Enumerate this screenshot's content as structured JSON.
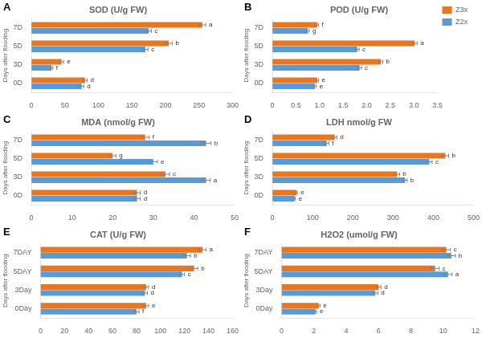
{
  "chart_data": [
    {
      "type": "bar",
      "orientation": "horizontal",
      "panel_label": "A",
      "title": "SOD (U/g FW)",
      "ylabel": "Days after flooding",
      "categories": [
        "0D",
        "3D",
        "5D",
        "7D"
      ],
      "series": [
        {
          "name": "Z3x",
          "color": "#E87722",
          "values": [
            80,
            45,
            205,
            255
          ],
          "errors": [
            3,
            3,
            5,
            5
          ],
          "annotations": [
            "d",
            "e",
            "b",
            "a"
          ]
        },
        {
          "name": "Z2x",
          "color": "#5B9BD5",
          "values": [
            75,
            30,
            170,
            175
          ],
          "errors": [
            3,
            2,
            4,
            4
          ],
          "annotations": [
            "d",
            "f",
            "c",
            "c"
          ]
        }
      ],
      "xlim": [
        0,
        300
      ],
      "xticks": [
        0,
        50,
        100,
        150,
        200,
        250,
        300
      ],
      "grid": false
    },
    {
      "type": "bar",
      "orientation": "horizontal",
      "panel_label": "B",
      "title": "POD (U/g FW)",
      "ylabel": "Days after flooding",
      "categories": [
        "0D",
        "3D",
        "5D",
        "7D"
      ],
      "series": [
        {
          "name": "Z3x",
          "color": "#E87722",
          "values": [
            0.95,
            2.3,
            3.02,
            0.95
          ],
          "errors": [
            0.03,
            0.04,
            0.05,
            0.03
          ],
          "annotations": [
            "e",
            "b",
            "a",
            "f"
          ]
        },
        {
          "name": "Z2x",
          "color": "#5B9BD5",
          "values": [
            0.9,
            1.85,
            1.8,
            0.75
          ],
          "errors": [
            0.03,
            0.04,
            0.04,
            0.03
          ],
          "annotations": [
            "e",
            "c",
            "c",
            "g"
          ]
        }
      ],
      "xlim": [
        0,
        3.5
      ],
      "xticks": [
        0,
        0.5,
        {
          "value": 1,
          "label": "1.0"
        },
        1.5,
        {
          "value": 2,
          "label": "2.0"
        },
        2.5,
        {
          "value": 3,
          "label": "3.0"
        },
        3.5
      ],
      "grid": false,
      "legend": "upper right"
    },
    {
      "type": "bar",
      "orientation": "horizontal",
      "panel_label": "C",
      "title": "MDA (nmol/g FW)",
      "ylabel": "Days after flooding",
      "categories": [
        "0D",
        "3D",
        "5D",
        "7D"
      ],
      "series": [
        {
          "name": "Z3x",
          "color": "#E87722",
          "values": [
            26,
            33,
            20,
            28
          ],
          "errors": [
            0.8,
            1.0,
            0.8,
            1.0
          ],
          "annotations": [
            "d",
            "c",
            "g",
            "f"
          ]
        },
        {
          "name": "Z2x",
          "color": "#5B9BD5",
          "values": [
            26,
            43,
            30,
            43
          ],
          "errors": [
            0.8,
            1.0,
            1.0,
            1.2
          ],
          "annotations": [
            "d",
            "a",
            "e",
            "b"
          ]
        }
      ],
      "xlim": [
        0,
        50
      ],
      "xticks": [
        0,
        10,
        20,
        30,
        40,
        50
      ],
      "grid": false
    },
    {
      "type": "bar",
      "orientation": "horizontal",
      "panel_label": "D",
      "title": "LDH nmol/g FW",
      "ylabel": "Days after flooding",
      "categories": [
        "0D",
        "3D",
        "5D",
        "7D"
      ],
      "series": [
        {
          "name": "Z3x",
          "color": "#E87722",
          "values": [
            60,
            310,
            430,
            155
          ],
          "errors": [
            2,
            6,
            8,
            5
          ],
          "annotations": [
            "e",
            "b",
            "b",
            "d"
          ]
        },
        {
          "name": "Z2x",
          "color": "#5B9BD5",
          "values": [
            55,
            330,
            390,
            135
          ],
          "errors": [
            2,
            5,
            7,
            5
          ],
          "annotations": [
            "e",
            "b",
            "c",
            "f"
          ]
        }
      ],
      "xlim": [
        0,
        500
      ],
      "xticks": [
        0,
        100,
        200,
        300,
        400,
        500
      ],
      "grid": false
    },
    {
      "type": "bar",
      "orientation": "horizontal",
      "panel_label": "E",
      "title": "CAT (U/g FW)",
      "ylabel": "Days after flooding",
      "categories": [
        "0Day",
        "3Day",
        "5DAY",
        "7DAY"
      ],
      "series": [
        {
          "name": "Z3x",
          "color": "#E87722",
          "values": [
            88,
            88,
            128,
            135
          ],
          "errors": [
            2,
            2,
            3,
            3
          ],
          "annotations": [
            "e",
            "d",
            "b",
            "a"
          ]
        },
        {
          "name": "Z2x",
          "color": "#5B9BD5",
          "values": [
            80,
            87,
            118,
            122
          ],
          "errors": [
            2,
            2,
            2,
            3
          ],
          "annotations": [
            "f",
            "d",
            "c",
            "b"
          ]
        }
      ],
      "xlim": [
        0,
        160
      ],
      "xticks": [
        0,
        20,
        40,
        60,
        80,
        100,
        120,
        140,
        160
      ],
      "grid": false
    },
    {
      "type": "bar",
      "orientation": "horizontal",
      "panel_label": "F",
      "title": "H2O2 (umol/g FW)",
      "ylabel": "Days after flooding",
      "categories": [
        "0Day",
        "3Day",
        "5DAY",
        "7DAY"
      ],
      "series": [
        {
          "name": "Z3x",
          "color": "#E87722",
          "values": [
            2.3,
            6.0,
            9.5,
            10.2
          ],
          "errors": [
            0.08,
            0.15,
            0.25,
            0.25
          ],
          "annotations": [
            "e",
            "d",
            "c",
            "c"
          ]
        },
        {
          "name": "Z2x",
          "color": "#5B9BD5",
          "values": [
            2.1,
            5.8,
            10.3,
            10.5
          ],
          "errors": [
            0.07,
            0.15,
            0.25,
            0.25
          ],
          "annotations": [
            "e",
            "d",
            "a",
            "b"
          ]
        }
      ],
      "xlim": [
        0,
        12
      ],
      "xticks": [
        0,
        2,
        4,
        6,
        8,
        10,
        12
      ],
      "grid": false
    }
  ]
}
